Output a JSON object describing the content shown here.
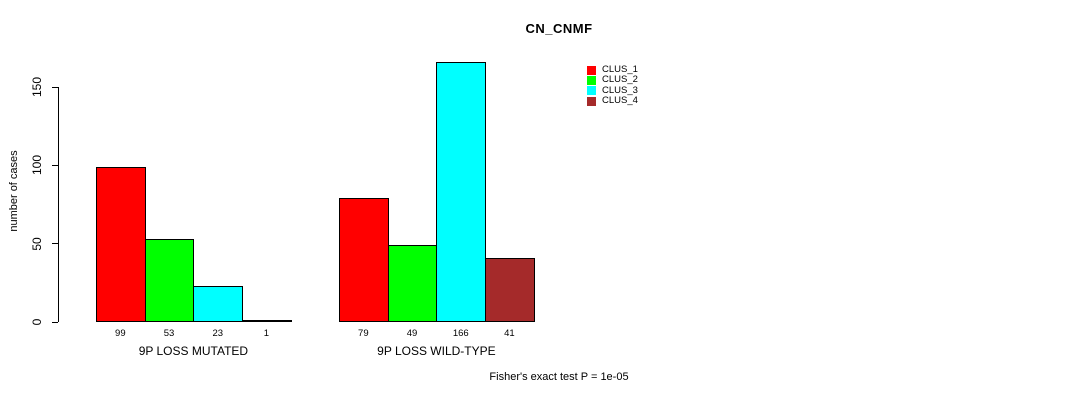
{
  "chart_data": {
    "type": "bar",
    "title": "CN_CNMF",
    "ylabel": "number of cases",
    "xlabel": "",
    "ylim": [
      0,
      150
    ],
    "yticks": [
      0,
      50,
      100,
      150
    ],
    "grid": false,
    "legend_position": "top-right",
    "groups": [
      "9P LOSS MUTATED",
      "9P LOSS WILD-TYPE"
    ],
    "series": [
      {
        "name": "CLUS_1",
        "color": "#ff0000",
        "values": [
          99,
          79
        ]
      },
      {
        "name": "CLUS_2",
        "color": "#00ff00",
        "values": [
          53,
          49
        ]
      },
      {
        "name": "CLUS_3",
        "color": "#00ffff",
        "values": [
          23,
          166
        ]
      },
      {
        "name": "CLUS_4",
        "color": "#a52a2a",
        "values": [
          1,
          41
        ]
      }
    ],
    "annotation": "Fisher's exact test P = 1e-05"
  }
}
